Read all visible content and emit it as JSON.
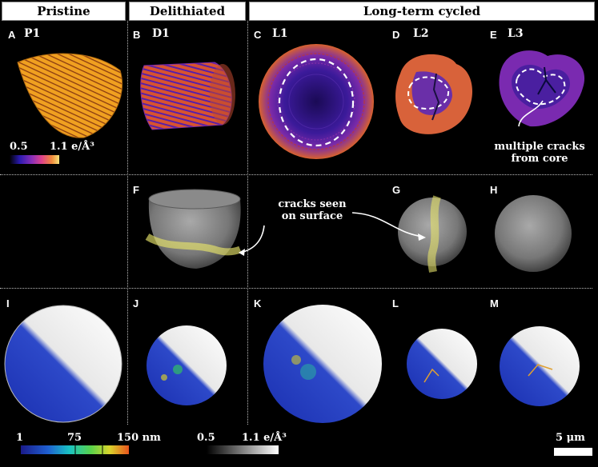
{
  "headers": {
    "pristine": "Pristine",
    "delithiated": "Delithiated",
    "long_term": "Long-term cycled"
  },
  "panels": [
    {
      "letter": "A",
      "sample": "P1"
    },
    {
      "letter": "B",
      "sample": "D1"
    },
    {
      "letter": "C",
      "sample": "L1"
    },
    {
      "letter": "D",
      "sample": "L2"
    },
    {
      "letter": "E",
      "sample": "L3"
    },
    {
      "letter": "F",
      "sample": ""
    },
    {
      "letter": "G",
      "sample": ""
    },
    {
      "letter": "H",
      "sample": ""
    },
    {
      "letter": "I",
      "sample": ""
    },
    {
      "letter": "J",
      "sample": ""
    },
    {
      "letter": "K",
      "sample": ""
    },
    {
      "letter": "L",
      "sample": ""
    },
    {
      "letter": "M",
      "sample": ""
    }
  ],
  "colorbar_density": {
    "min": "0.5",
    "max": "1.1 e/Å³"
  },
  "annotations": {
    "multiple_cracks": "multiple cracks",
    "from_core": "from core",
    "cracks_seen": "cracks  seen",
    "on_surface": "on surface"
  },
  "colorbar_size": {
    "labels": [
      "1",
      "75",
      "150 nm"
    ]
  },
  "colorbar_gray": {
    "min": "0.5",
    "max": "1.1 e/Å³"
  },
  "scalebar": {
    "label": "5 μm"
  },
  "colors": {
    "accent_orange": "#f2a03a",
    "accent_purple": "#5a1fa8",
    "crack_yellow": "#e8e36a"
  }
}
